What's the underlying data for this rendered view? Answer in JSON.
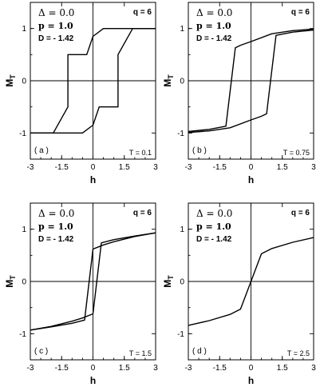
{
  "chart_data": [
    {
      "type": "line",
      "panel": "( a )",
      "xlabel": "h",
      "ylabel": "M",
      "ylabel_sub": "T",
      "xlim": [
        -3,
        3
      ],
      "ylim": [
        -1.5,
        1.5
      ],
      "xticks": [
        -3,
        -1.5,
        0,
        1.5,
        3
      ],
      "yticks": [
        -1,
        0,
        1
      ],
      "xtick_labels": [
        "-3",
        "-1.5",
        "0",
        "1.5",
        "3"
      ],
      "ytick_labels": [
        "-1",
        "0",
        "1"
      ],
      "params": {
        "delta": "Δ = 0.0",
        "p": "p = 1.0",
        "d": "D = - 1.42",
        "q": "q = 6",
        "t": "T = 0.1"
      },
      "series": [
        {
          "x": [
            3,
            0.5,
            0,
            -0.3,
            -1.2,
            -1.2,
            -1.9,
            -3
          ],
          "y": [
            1,
            1,
            0.85,
            0.5,
            0.5,
            -0.5,
            -1,
            -1
          ]
        },
        {
          "x": [
            -3,
            -0.5,
            0,
            0.3,
            1.2,
            1.2,
            1.9,
            3
          ],
          "y": [
            -1,
            -1,
            -0.85,
            -0.5,
            -0.5,
            0.5,
            1,
            1
          ]
        }
      ]
    },
    {
      "type": "line",
      "panel": "( b )",
      "xlabel": "h",
      "ylabel": "M",
      "ylabel_sub": "T",
      "xlim": [
        -3,
        3
      ],
      "ylim": [
        -1.5,
        1.5
      ],
      "xticks": [
        -3,
        -1.5,
        0,
        1.5,
        3
      ],
      "yticks": [
        -1,
        0,
        1
      ],
      "xtick_labels": [
        "-3",
        "-1.5",
        "0",
        "1.5",
        "3"
      ],
      "ytick_labels": [
        "-1",
        "0",
        "1"
      ],
      "params": {
        "delta": "Δ = 0.0",
        "p": "p = 1.0",
        "d": "D = - 1.42",
        "q": "q = 6",
        "t": "T = 0.75"
      },
      "series": [
        {
          "x": [
            3,
            2,
            1,
            0,
            -0.5,
            -0.75,
            -1.2,
            -2,
            -3
          ],
          "y": [
            0.99,
            0.96,
            0.9,
            0.75,
            0.68,
            0.63,
            -0.87,
            -0.93,
            -0.97
          ]
        },
        {
          "x": [
            -3,
            -2,
            -1,
            0,
            0.5,
            0.75,
            1.2,
            2,
            3
          ],
          "y": [
            -0.99,
            -0.96,
            -0.9,
            -0.75,
            -0.68,
            -0.63,
            0.87,
            0.93,
            0.97
          ]
        }
      ]
    },
    {
      "type": "line",
      "panel": "( c )",
      "xlabel": "h",
      "ylabel": "M",
      "ylabel_sub": "T",
      "xlim": [
        -3,
        3
      ],
      "ylim": [
        -1.5,
        1.5
      ],
      "xticks": [
        -3,
        -1.5,
        0,
        1.5,
        3
      ],
      "yticks": [
        -1,
        0,
        1
      ],
      "xtick_labels": [
        "-3",
        "-1.5",
        "0",
        "1.5",
        "3"
      ],
      "ytick_labels": [
        "-1",
        "0",
        "1"
      ],
      "params": {
        "delta": "Δ = 0.0",
        "p": "p = 1.0",
        "d": "D = - 1.42",
        "q": "q = 6",
        "t": "T = 1.5"
      },
      "series": [
        {
          "x": [
            3,
            2,
            1,
            0.5,
            0,
            -0.4,
            -1,
            -2,
            -3
          ],
          "y": [
            0.93,
            0.86,
            0.76,
            0.7,
            0.62,
            -0.74,
            -0.8,
            -0.87,
            -0.93
          ]
        },
        {
          "x": [
            -3,
            -2,
            -1,
            -0.5,
            0,
            0.4,
            1,
            2,
            3
          ],
          "y": [
            -0.93,
            -0.86,
            -0.76,
            -0.7,
            -0.62,
            0.74,
            0.8,
            0.87,
            0.93
          ]
        }
      ]
    },
    {
      "type": "line",
      "panel": "( d )",
      "xlabel": "h",
      "ylabel": "M",
      "ylabel_sub": "T",
      "xlim": [
        -3,
        3
      ],
      "ylim": [
        -1.5,
        1.5
      ],
      "xticks": [
        -3,
        -1.5,
        0,
        1.5,
        3
      ],
      "yticks": [
        -1,
        0,
        1
      ],
      "xtick_labels": [
        "-3",
        "-1.5",
        "0",
        "1.5",
        "3"
      ],
      "ytick_labels": [
        "-1",
        "0",
        "1"
      ],
      "params": {
        "delta": "Δ = 0.0",
        "p": "p = 1.0",
        "d": "D = - 1.42",
        "q": "q = 6",
        "t": "T = 2.5"
      },
      "series": [
        {
          "x": [
            -3,
            -2,
            -1,
            -0.5,
            0,
            0.5,
            1,
            2,
            3
          ],
          "y": [
            -0.84,
            -0.75,
            -0.63,
            -0.53,
            0,
            0.53,
            0.63,
            0.75,
            0.84
          ]
        }
      ]
    }
  ]
}
